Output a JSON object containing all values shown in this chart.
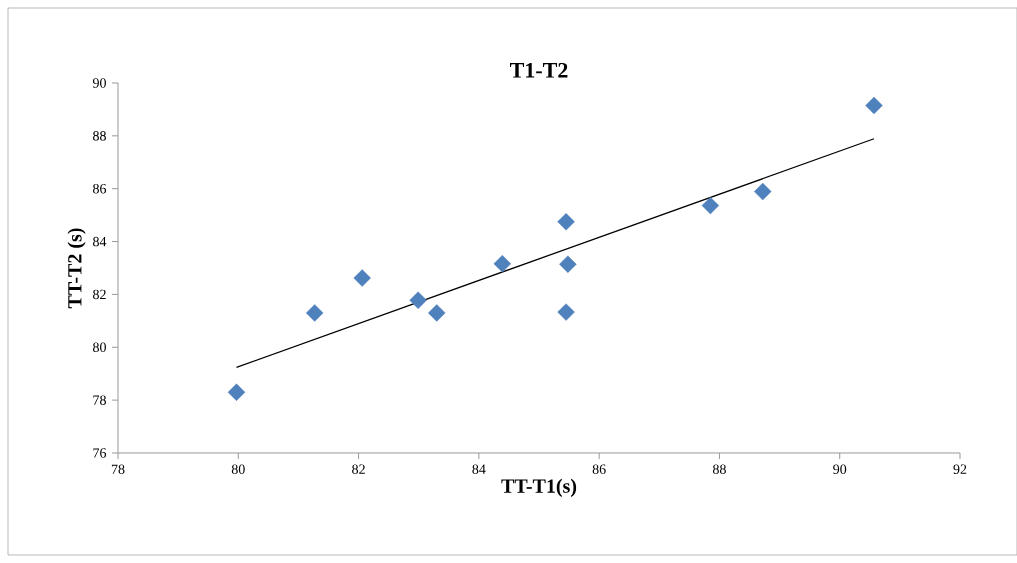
{
  "chart_data": {
    "type": "scatter",
    "title": "T1-T2",
    "xlabel": "TT-T1(s)",
    "ylabel": "TT-T2 (s)",
    "xlim": [
      78,
      92
    ],
    "xticks": [
      78,
      80,
      82,
      84,
      86,
      88,
      90,
      92
    ],
    "ylim": [
      76,
      90
    ],
    "yticks": [
      76,
      78,
      80,
      82,
      84,
      86,
      88,
      90
    ],
    "grid": false,
    "series": [
      {
        "color": "#4f81bd",
        "marker": "diamond",
        "x": [
          79.97,
          81.27,
          82.06,
          82.99,
          83.3,
          84.39,
          85.45,
          85.48,
          85.45,
          87.85,
          88.72,
          90.57
        ],
        "values": [
          78.3,
          81.3,
          82.62,
          81.78,
          81.3,
          83.16,
          84.75,
          83.14,
          81.33,
          85.36,
          85.89,
          89.15
        ]
      },
      {
        "type": "line",
        "color": "#000000",
        "marker": "none",
        "line_style": "solid",
        "x": [
          79.97,
          90.57
        ],
        "values": [
          79.24,
          87.89
        ]
      }
    ]
  }
}
